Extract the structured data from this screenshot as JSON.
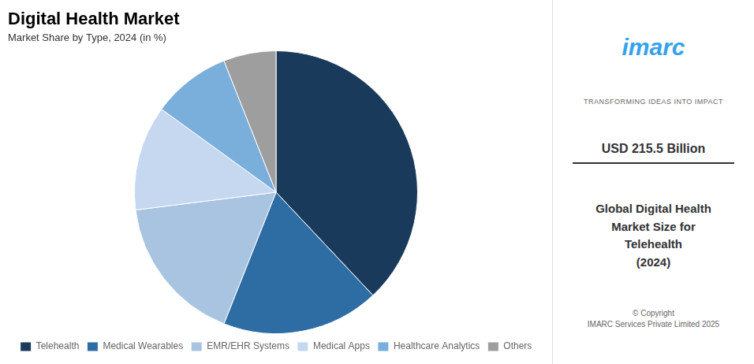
{
  "chart_data": {
    "type": "pie",
    "title": "Digital Health Market",
    "subtitle": "Market Share by Type, 2024 (in %)",
    "categories": [
      "Telehealth",
      "Medical Wearables",
      "EMR/EHR Systems",
      "Medical Apps",
      "Healthcare Analytics",
      "Others"
    ],
    "values": [
      38,
      18,
      17,
      12,
      9,
      6
    ],
    "colors": [
      "#1a3a5c",
      "#2e6da4",
      "#a8c4e0",
      "#c5d8f0",
      "#7aaedb",
      "#9e9e9e"
    ],
    "legend": "bottom",
    "annotations": [
      "imarc",
      "TRANSFORMING IDEAS INTO IMPACT",
      "USD 215.5 Billion",
      "Global Digital Health\nMarket Size for\nTelehealth\n(2024)",
      "© Copyright\nIMARC Services Private Limited 2025"
    ]
  }
}
